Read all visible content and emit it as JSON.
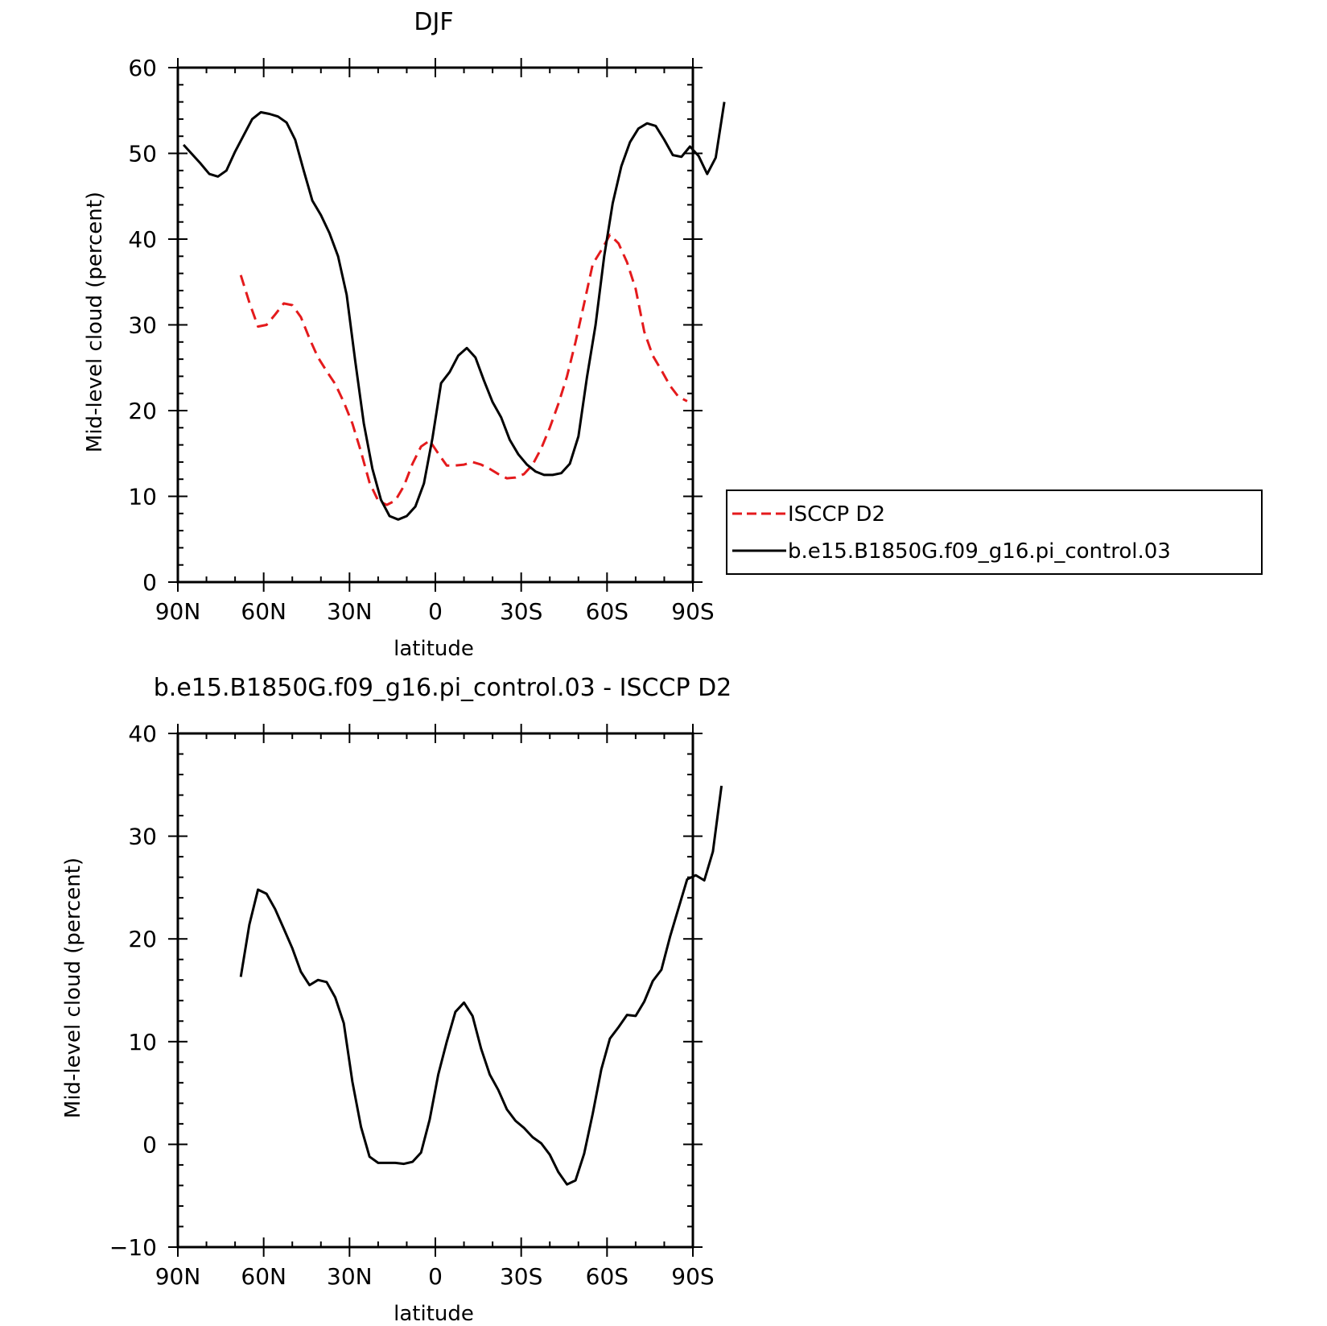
{
  "chart_data": [
    {
      "type": "line",
      "title": "DJF",
      "xlabel": "latitude",
      "ylabel": "Mid-level cloud (percent)",
      "xlim": [
        -90,
        90
      ],
      "ylim": [
        0,
        60
      ],
      "x_ticks": [
        -90,
        -60,
        -30,
        0,
        30,
        60,
        90
      ],
      "x_tick_labels": [
        "90N",
        "60N",
        "30N",
        "0",
        "30S",
        "60S",
        "90S"
      ],
      "y_ticks": [
        0,
        10,
        20,
        30,
        40,
        50,
        60
      ],
      "y_tick_labels": [
        "0",
        "10",
        "20",
        "30",
        "40",
        "50",
        "60"
      ],
      "legend_position": "right",
      "series": [
        {
          "name": "ISCCP D2",
          "color": "#e41a1c",
          "style": "dashed",
          "points": [
            [
              -68,
              35.8
            ],
            [
              -65,
              32.6
            ],
            [
              -62,
              29.8
            ],
            [
              -59,
              30.0
            ],
            [
              -56,
              31.2
            ],
            [
              -53,
              32.5
            ],
            [
              -50,
              32.3
            ],
            [
              -47,
              30.9
            ],
            [
              -44,
              28.4
            ],
            [
              -41,
              26.2
            ],
            [
              -38,
              24.6
            ],
            [
              -35,
              23.1
            ],
            [
              -32,
              21.0
            ],
            [
              -29,
              18.5
            ],
            [
              -26,
              15.2
            ],
            [
              -23,
              11.6
            ],
            [
              -20,
              9.5
            ],
            [
              -17,
              9.0
            ],
            [
              -14,
              9.5
            ],
            [
              -11,
              11.2
            ],
            [
              -8,
              13.8
            ],
            [
              -5,
              15.8
            ],
            [
              -2,
              16.5
            ],
            [
              1,
              15.0
            ],
            [
              4,
              13.6
            ],
            [
              7,
              13.6
            ],
            [
              10,
              13.7
            ],
            [
              13,
              14.0
            ],
            [
              16,
              13.7
            ],
            [
              19,
              13.2
            ],
            [
              22,
              12.6
            ],
            [
              25,
              12.1
            ],
            [
              28,
              12.2
            ],
            [
              31,
              12.6
            ],
            [
              34,
              13.7
            ],
            [
              37,
              15.6
            ],
            [
              40,
              18.0
            ],
            [
              43,
              20.8
            ],
            [
              46,
              24.0
            ],
            [
              49,
              28.0
            ],
            [
              52,
              32.5
            ],
            [
              55,
              37.1
            ],
            [
              58,
              38.7
            ],
            [
              61,
              40.5
            ],
            [
              64,
              39.5
            ],
            [
              67,
              37.3
            ],
            [
              70,
              34.2
            ],
            [
              73,
              29.2
            ],
            [
              76,
              26.4
            ],
            [
              79,
              24.7
            ],
            [
              82,
              22.9
            ],
            [
              85,
              21.6
            ],
            [
              88,
              21.1
            ]
          ]
        },
        {
          "name": "b.e15.B1850G.f09_g16.pi_control.03",
          "color": "#000000",
          "style": "solid",
          "points": [
            [
              -88,
              51.0
            ],
            [
              -85,
              49.9
            ],
            [
              -82,
              48.8
            ],
            [
              -79,
              47.6
            ],
            [
              -76,
              47.3
            ],
            [
              -73,
              48.0
            ],
            [
              -70,
              50.2
            ],
            [
              -67,
              52.1
            ],
            [
              -64,
              54.0
            ],
            [
              -61,
              54.8
            ],
            [
              -58,
              54.6
            ],
            [
              -55,
              54.3
            ],
            [
              -52,
              53.6
            ],
            [
              -49,
              51.6
            ],
            [
              -46,
              48.0
            ],
            [
              -43,
              44.5
            ],
            [
              -40,
              42.8
            ],
            [
              -37,
              40.7
            ],
            [
              -34,
              38.0
            ],
            [
              -31,
              33.5
            ],
            [
              -28,
              25.8
            ],
            [
              -25,
              18.5
            ],
            [
              -22,
              13.2
            ],
            [
              -19,
              9.6
            ],
            [
              -16,
              7.7
            ],
            [
              -13,
              7.3
            ],
            [
              -10,
              7.7
            ],
            [
              -7,
              8.8
            ],
            [
              -4,
              11.5
            ],
            [
              -1,
              16.8
            ],
            [
              2,
              23.2
            ],
            [
              5,
              24.5
            ],
            [
              8,
              26.4
            ],
            [
              11,
              27.3
            ],
            [
              14,
              26.2
            ],
            [
              17,
              23.5
            ],
            [
              20,
              21.0
            ],
            [
              23,
              19.2
            ],
            [
              26,
              16.6
            ],
            [
              29,
              14.9
            ],
            [
              32,
              13.7
            ],
            [
              35,
              12.9
            ],
            [
              38,
              12.5
            ],
            [
              41,
              12.5
            ],
            [
              44,
              12.7
            ],
            [
              47,
              13.8
            ],
            [
              50,
              17.0
            ],
            [
              53,
              23.9
            ],
            [
              56,
              30.0
            ],
            [
              59,
              38.0
            ],
            [
              62,
              44.2
            ],
            [
              65,
              48.5
            ],
            [
              68,
              51.3
            ],
            [
              71,
              52.9
            ],
            [
              74,
              53.5
            ],
            [
              77,
              53.2
            ],
            [
              80,
              51.6
            ],
            [
              83,
              49.8
            ],
            [
              86,
              49.6
            ],
            [
              89,
              50.8
            ],
            [
              92,
              49.7
            ],
            [
              95,
              47.6
            ],
            [
              98,
              49.5
            ],
            [
              101,
              56.0
            ]
          ]
        }
      ]
    },
    {
      "type": "line",
      "title": "b.e15.B1850G.f09_g16.pi_control.03 - ISCCP D2",
      "xlabel": "latitude",
      "ylabel": "Mid-level cloud (percent)",
      "xlim": [
        -90,
        90
      ],
      "ylim": [
        -10,
        40
      ],
      "x_ticks": [
        -90,
        -60,
        -30,
        0,
        30,
        60,
        90
      ],
      "x_tick_labels": [
        "90N",
        "60N",
        "30N",
        "0",
        "30S",
        "60S",
        "90S"
      ],
      "y_ticks": [
        -10,
        0,
        10,
        20,
        30,
        40
      ],
      "y_tick_labels": [
        "−10",
        "0",
        "10",
        "20",
        "30",
        "40"
      ],
      "series": [
        {
          "color": "#000000",
          "style": "solid",
          "points": [
            [
              -68,
              16.3
            ],
            [
              -65,
              21.4
            ],
            [
              -62,
              24.8
            ],
            [
              -59,
              24.4
            ],
            [
              -56,
              22.9
            ],
            [
              -53,
              21.0
            ],
            [
              -50,
              19.1
            ],
            [
              -47,
              16.8
            ],
            [
              -44,
              15.5
            ],
            [
              -41,
              16.0
            ],
            [
              -38,
              15.8
            ],
            [
              -35,
              14.3
            ],
            [
              -32,
              11.8
            ],
            [
              -29,
              6.1
            ],
            [
              -26,
              1.7
            ],
            [
              -23,
              -1.2
            ],
            [
              -20,
              -1.8
            ],
            [
              -17,
              -1.8
            ],
            [
              -14,
              -1.8
            ],
            [
              -11,
              -1.9
            ],
            [
              -8,
              -1.7
            ],
            [
              -5,
              -0.8
            ],
            [
              -2,
              2.4
            ],
            [
              1,
              6.8
            ],
            [
              4,
              10.0
            ],
            [
              7,
              12.9
            ],
            [
              10,
              13.8
            ],
            [
              13,
              12.5
            ],
            [
              16,
              9.3
            ],
            [
              19,
              6.8
            ],
            [
              22,
              5.3
            ],
            [
              25,
              3.4
            ],
            [
              28,
              2.3
            ],
            [
              31,
              1.6
            ],
            [
              34,
              0.7
            ],
            [
              37,
              0.1
            ],
            [
              40,
              -1.0
            ],
            [
              43,
              -2.7
            ],
            [
              46,
              -3.9
            ],
            [
              49,
              -3.5
            ],
            [
              52,
              -0.9
            ],
            [
              55,
              3.0
            ],
            [
              58,
              7.3
            ],
            [
              61,
              10.3
            ],
            [
              64,
              11.4
            ],
            [
              67,
              12.6
            ],
            [
              70,
              12.5
            ],
            [
              73,
              13.9
            ],
            [
              76,
              15.9
            ],
            [
              79,
              17.0
            ],
            [
              82,
              20.2
            ],
            [
              85,
              23.0
            ],
            [
              88,
              25.8
            ],
            [
              91,
              26.2
            ],
            [
              94,
              25.7
            ],
            [
              97,
              28.5
            ],
            [
              100,
              34.9
            ]
          ]
        }
      ]
    }
  ]
}
